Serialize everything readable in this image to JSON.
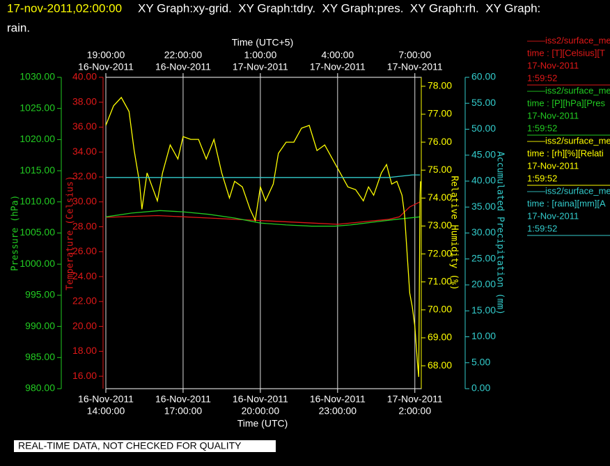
{
  "header": {
    "timestamp": "17-nov-2011,02:00:00",
    "graphs": "XY Graph:xy-grid.  XY Graph:tdry.  XY Graph:pres.  XY Graph:rh.  XY Graph:",
    "graphs_cont": "rain."
  },
  "chart_data": {
    "type": "line",
    "xlabel": "Time (UTC)",
    "x2label": "Time (UTC+5)",
    "xlim": [
      14,
      26.25
    ],
    "x2lim": [
      19,
      31.25
    ],
    "xticks": [
      {
        "value": 14,
        "label": [
          "16-Nov-2011",
          "14:00:00"
        ]
      },
      {
        "value": 17,
        "label": [
          "16-Nov-2011",
          "17:00:00"
        ]
      },
      {
        "value": 20,
        "label": [
          "16-Nov-2011",
          "20:00:00"
        ]
      },
      {
        "value": 23,
        "label": [
          "16-Nov-2011",
          "23:00:00"
        ]
      },
      {
        "value": 26,
        "label": [
          "17-Nov-2011",
          "2:00:00"
        ]
      }
    ],
    "x2ticks": [
      {
        "value": 19,
        "label": [
          "19:00:00",
          "16-Nov-2011"
        ]
      },
      {
        "value": 22,
        "label": [
          "22:00:00",
          "16-Nov-2011"
        ]
      },
      {
        "value": 25,
        "label": [
          "1:00:00",
          "17-Nov-2011"
        ]
      },
      {
        "value": 28,
        "label": [
          "4:00:00",
          "17-Nov-2011"
        ]
      },
      {
        "value": 31,
        "label": [
          "7:00:00",
          "17-Nov-2011"
        ]
      }
    ],
    "grid": true,
    "axes": [
      {
        "label": "Pressure (hPa)",
        "color": "#22cc22",
        "lim": [
          980,
          1030
        ],
        "ticks": [
          {
            "value": 980,
            "label": "980.00"
          },
          {
            "value": 985,
            "label": "985.00"
          },
          {
            "value": 990,
            "label": "990.00"
          },
          {
            "value": 995,
            "label": "995.00"
          },
          {
            "value": 1000,
            "label": "1000.00"
          },
          {
            "value": 1005,
            "label": "1005.00"
          },
          {
            "value": 1010,
            "label": "1010.00"
          },
          {
            "value": 1015,
            "label": "1015.00"
          },
          {
            "value": 1020,
            "label": "1020.00"
          },
          {
            "value": 1025,
            "label": "1025.00"
          },
          {
            "value": 1030,
            "label": "1030.00"
          }
        ]
      },
      {
        "label": "Temperature (Celsius)",
        "color": "#e01818",
        "lim": [
          15,
          40
        ],
        "ticks": [
          {
            "value": 16,
            "label": "16.00"
          },
          {
            "value": 18,
            "label": "18.00"
          },
          {
            "value": 20,
            "label": "20.00"
          },
          {
            "value": 22,
            "label": "22.00"
          },
          {
            "value": 24,
            "label": "24.00"
          },
          {
            "value": 26,
            "label": "26.00"
          },
          {
            "value": 28,
            "label": "28.00"
          },
          {
            "value": 30,
            "label": "30.00"
          },
          {
            "value": 32,
            "label": "32.00"
          },
          {
            "value": 34,
            "label": "34.00"
          },
          {
            "value": 36,
            "label": "36.00"
          },
          {
            "value": 38,
            "label": "38.00"
          },
          {
            "value": 40,
            "label": "40.00"
          }
        ]
      },
      {
        "label": "Relative Humidity (%)",
        "color": "#ffff00",
        "lim": [
          67.18,
          78.32
        ],
        "ticks": [
          {
            "value": 68,
            "label": "68.00"
          },
          {
            "value": 69,
            "label": "69.00"
          },
          {
            "value": 70,
            "label": "70.00"
          },
          {
            "value": 71,
            "label": "71.00"
          },
          {
            "value": 72,
            "label": "72.00"
          },
          {
            "value": 73,
            "label": "73.00"
          },
          {
            "value": 74,
            "label": "74.00"
          },
          {
            "value": 75,
            "label": "75.00"
          },
          {
            "value": 76,
            "label": "76.00"
          },
          {
            "value": 77,
            "label": "77.00"
          },
          {
            "value": 78,
            "label": "78.00"
          }
        ]
      },
      {
        "label": "Accumulated Precipitation (mm)",
        "color": "#33cccc",
        "lim": [
          0,
          60
        ],
        "ticks": [
          {
            "value": 0,
            "label": "0.00"
          },
          {
            "value": 5,
            "label": "5.00"
          },
          {
            "value": 10,
            "label": "10.00"
          },
          {
            "value": 15,
            "label": "15.00"
          },
          {
            "value": 20,
            "label": "20.00"
          },
          {
            "value": 25,
            "label": "25.00"
          },
          {
            "value": 30,
            "label": "30.00"
          },
          {
            "value": 35,
            "label": "35.00"
          },
          {
            "value": 40,
            "label": "40.00"
          },
          {
            "value": 45,
            "label": "45.00"
          },
          {
            "value": 50,
            "label": "50.00"
          },
          {
            "value": 55,
            "label": "55.00"
          },
          {
            "value": 60,
            "label": "60.00"
          }
        ]
      }
    ],
    "series": [
      {
        "name": "——iss2/surface_me",
        "details": [
          "time : [T][Celsius][T",
          "17-Nov-2011",
          "1:59:52"
        ],
        "color": "#e01818",
        "axis": 1,
        "x": [
          14,
          16,
          18,
          20,
          22,
          23,
          24,
          25,
          25.4,
          25.6,
          25.8,
          26,
          26.2
        ],
        "values": [
          28.76,
          28.9,
          28.7,
          28.5,
          28.3,
          28.2,
          28.4,
          28.6,
          28.8,
          29.2,
          29.6,
          29.8,
          30.0
        ]
      },
      {
        "name": "——iss2/surface_me",
        "details": [
          "time : [P][hPa][Pres",
          "17-Nov-2011",
          "1:59:52"
        ],
        "color": "#22cc22",
        "axis": 0,
        "x": [
          14,
          15,
          16.1,
          17,
          18,
          19,
          20,
          21,
          22,
          22.9,
          23.5,
          24.5,
          25.3,
          26.2
        ],
        "values": [
          1007.6,
          1008.2,
          1008.6,
          1008.4,
          1008.0,
          1007.4,
          1006.6,
          1006.3,
          1006.1,
          1006.1,
          1006.3,
          1006.8,
          1007.2,
          1007.6
        ]
      },
      {
        "name": "——iss2/surface_me",
        "details": [
          "time : [rh][%][Relati",
          "17-Nov-2011",
          "1:59:52"
        ],
        "color": "#ffff00",
        "axis": 2,
        "x": [
          14,
          14.3,
          14.6,
          14.9,
          15.1,
          15.3,
          15.4,
          15.6,
          15.8,
          16,
          16.2,
          16.5,
          16.8,
          17,
          17.3,
          17.6,
          17.9,
          18.2,
          18.5,
          18.8,
          19,
          19.3,
          19.6,
          19.8,
          20,
          20.2,
          20.5,
          20.7,
          21,
          21.3,
          21.6,
          21.9,
          22.2,
          22.5,
          22.8,
          23.1,
          23.4,
          23.7,
          24,
          24.2,
          24.4,
          24.7,
          24.9,
          25.1,
          25.3,
          25.5,
          25.6,
          25.8,
          25.9,
          26,
          26.1,
          26.15,
          26.2,
          26.22
        ],
        "values": [
          76.6,
          77.3,
          77.6,
          77.1,
          75.7,
          74.6,
          73.6,
          74.9,
          74.4,
          73.9,
          74.9,
          75.9,
          75.4,
          76.2,
          76.1,
          76.1,
          75.4,
          76.1,
          74.9,
          74.0,
          74.6,
          74.4,
          73.6,
          73.2,
          74.4,
          73.9,
          74.5,
          75.6,
          76.0,
          76.0,
          76.5,
          76.6,
          75.7,
          75.9,
          75.4,
          74.9,
          74.4,
          74.3,
          73.9,
          74.4,
          74.1,
          74.9,
          75.2,
          74.5,
          74.6,
          74.1,
          73.4,
          70.6,
          70.1,
          69.4,
          68.1,
          67.6,
          74.1,
          74.6
        ]
      },
      {
        "name": "——iss2/surface_me",
        "details": [
          "time : [raina][mm][A",
          "17-Nov-2011",
          "1:59:52"
        ],
        "color": "#33cccc",
        "axis": 3,
        "x": [
          14,
          25,
          25.9,
          26.2
        ],
        "values": [
          40.7,
          40.7,
          41.2,
          41.2
        ]
      }
    ]
  },
  "footer": {
    "notice": "REAL-TIME DATA, NOT CHECKED FOR QUALITY"
  }
}
